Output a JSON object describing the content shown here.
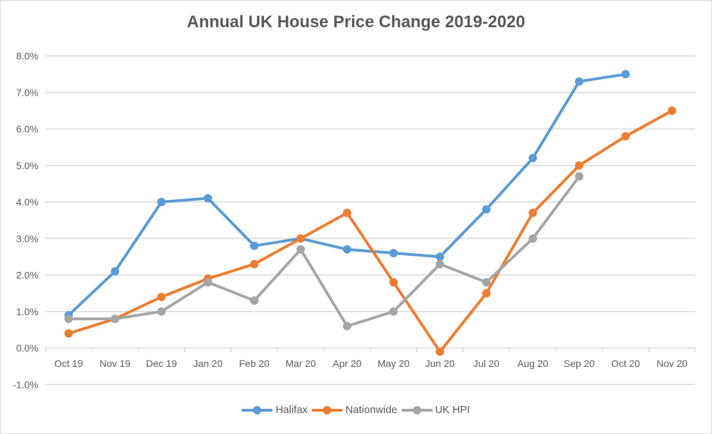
{
  "chart_data": {
    "type": "line",
    "title": "Annual UK House Price Change 2019-2020",
    "xlabel": "",
    "ylabel": "",
    "categories": [
      "Oct 19",
      "Nov 19",
      "Dec 19",
      "Jan 20",
      "Feb 20",
      "Mar 20",
      "Apr 20",
      "May 20",
      "Jun 20",
      "Jul 20",
      "Aug 20",
      "Sep 20",
      "Oct 20",
      "Nov 20"
    ],
    "ylim": [
      -1.0,
      8.0
    ],
    "yticks": [
      -1.0,
      0.0,
      1.0,
      2.0,
      3.0,
      4.0,
      5.0,
      6.0,
      7.0,
      8.0
    ],
    "ytick_labels": [
      "-1.0%",
      "0.0%",
      "1.0%",
      "2.0%",
      "3.0%",
      "4.0%",
      "5.0%",
      "6.0%",
      "7.0%",
      "8.0%"
    ],
    "grid": true,
    "legend_position": "bottom",
    "series": [
      {
        "name": "Halifax",
        "color": "#5b9bd5",
        "values": [
          0.9,
          2.1,
          4.0,
          4.1,
          2.8,
          3.0,
          2.7,
          2.6,
          2.5,
          3.8,
          5.2,
          7.3,
          7.5,
          null
        ]
      },
      {
        "name": "Nationwide",
        "color": "#ed7d31",
        "values": [
          0.4,
          0.8,
          1.4,
          1.9,
          2.3,
          3.0,
          3.7,
          1.8,
          -0.1,
          1.5,
          3.7,
          5.0,
          5.8,
          6.5
        ]
      },
      {
        "name": "UK HPI",
        "color": "#a5a5a5",
        "values": [
          0.8,
          0.8,
          1.0,
          1.8,
          1.3,
          2.7,
          0.6,
          1.0,
          2.3,
          1.8,
          3.0,
          4.7,
          null,
          null
        ]
      }
    ]
  }
}
